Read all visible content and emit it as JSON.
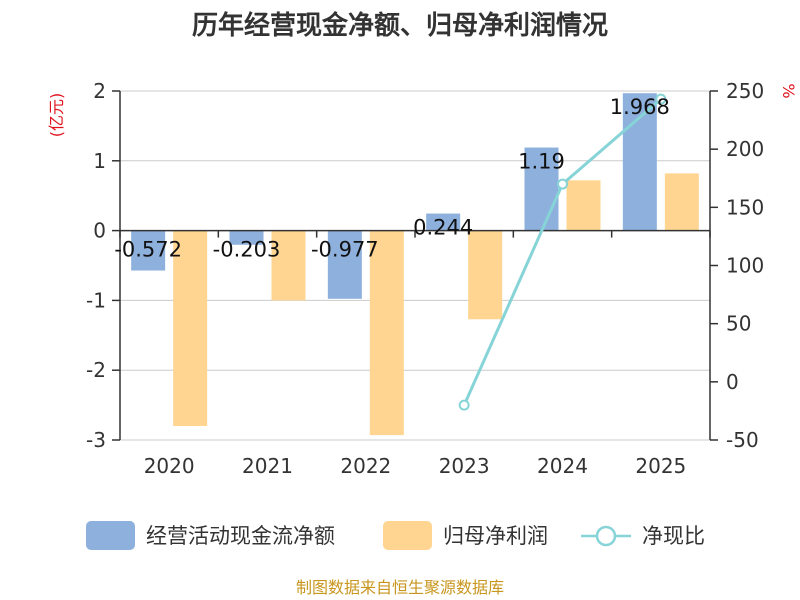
{
  "chart_data": {
    "type": "bar",
    "title": "历年经营现金净额、归母净利润情况",
    "categories": [
      "2020",
      "2021",
      "2022",
      "2023",
      "2024",
      "2025"
    ],
    "series": [
      {
        "name": "经营活动现金流净额",
        "kind": "bar",
        "axis": "left",
        "color": "#8eb0dd",
        "values": [
          -0.572,
          -0.203,
          -0.977,
          0.244,
          1.19,
          1.968
        ],
        "labels": [
          "-0.572",
          "-0.203",
          "-0.977",
          "0.244",
          "1.19",
          "1.968"
        ]
      },
      {
        "name": "归母净利润",
        "kind": "bar",
        "axis": "left",
        "color": "#ffd591",
        "values": [
          -2.8,
          -1.0,
          -2.93,
          -1.27,
          0.72,
          0.82
        ]
      },
      {
        "name": "净现比",
        "kind": "line",
        "axis": "right",
        "color": "#86d4d7",
        "values": [
          null,
          null,
          null,
          -20,
          170,
          243
        ]
      }
    ],
    "yleft": {
      "label": "(亿元)",
      "min": -3,
      "max": 2,
      "ticks": [
        2,
        1,
        0,
        -1,
        -2,
        -3
      ]
    },
    "yright": {
      "label": "%",
      "min": -50,
      "max": 250,
      "ticks": [
        250,
        200,
        150,
        100,
        50,
        0,
        -50
      ]
    },
    "source": "制图数据来自恒生聚源数据库"
  }
}
